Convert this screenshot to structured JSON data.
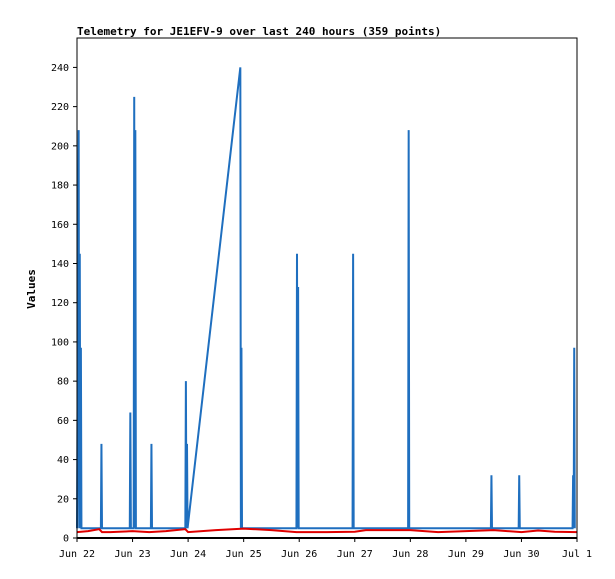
{
  "chart_data": {
    "type": "line",
    "title": "Telemetry for JE1EFV-9 over last 240 hours (359 points)",
    "xlabel": "",
    "ylabel": "Values",
    "x_tick_labels": [
      "Jun 22",
      "Jun 23",
      "Jun 24",
      "Jun 25",
      "Jun 26",
      "Jun 27",
      "Jun 28",
      "Jun 29",
      "Jun 30",
      "Jul 1"
    ],
    "x_tick_days": [
      0,
      1,
      2,
      3,
      4,
      5,
      6,
      7,
      8,
      9
    ],
    "xlim_days": [
      0,
      9
    ],
    "ylim": [
      0,
      255
    ],
    "y_ticks": [
      0,
      20,
      40,
      60,
      80,
      100,
      120,
      140,
      160,
      180,
      200,
      220,
      240
    ],
    "grid": false,
    "legend": "none",
    "series": [
      {
        "color": "#1f6fbf",
        "points": [
          [
            0.0,
            5
          ],
          [
            0.03,
            208
          ],
          [
            0.04,
            5
          ],
          [
            0.05,
            145
          ],
          [
            0.06,
            5
          ],
          [
            0.07,
            97
          ],
          [
            0.08,
            5
          ],
          [
            0.43,
            5
          ],
          [
            0.44,
            48
          ],
          [
            0.45,
            5
          ],
          [
            0.95,
            5
          ],
          [
            0.96,
            64
          ],
          [
            0.97,
            5
          ],
          [
            1.02,
            5
          ],
          [
            1.03,
            225
          ],
          [
            1.04,
            5
          ],
          [
            1.05,
            208
          ],
          [
            1.06,
            5
          ],
          [
            1.33,
            5
          ],
          [
            1.34,
            48
          ],
          [
            1.35,
            5
          ],
          [
            1.95,
            5
          ],
          [
            1.96,
            80
          ],
          [
            1.97,
            5
          ],
          [
            1.98,
            48
          ],
          [
            1.99,
            5
          ],
          [
            2.94,
            240
          ],
          [
            2.95,
            5
          ],
          [
            2.96,
            97
          ],
          [
            2.97,
            5
          ],
          [
            3.95,
            5
          ],
          [
            3.96,
            145
          ],
          [
            3.97,
            5
          ],
          [
            3.98,
            128
          ],
          [
            3.99,
            5
          ],
          [
            4.96,
            5
          ],
          [
            4.97,
            145
          ],
          [
            4.98,
            5
          ],
          [
            5.96,
            5
          ],
          [
            5.97,
            208
          ],
          [
            5.98,
            5
          ],
          [
            7.45,
            5
          ],
          [
            7.46,
            32
          ],
          [
            7.47,
            5
          ],
          [
            7.95,
            5
          ],
          [
            7.96,
            32
          ],
          [
            7.97,
            5
          ],
          [
            8.92,
            5
          ],
          [
            8.93,
            32
          ],
          [
            8.94,
            5
          ],
          [
            8.95,
            97
          ],
          [
            8.96,
            5
          ]
        ]
      },
      {
        "color": "#e00000",
        "points": [
          [
            0.0,
            3
          ],
          [
            0.2,
            3.5
          ],
          [
            0.4,
            4.5
          ],
          [
            0.45,
            3
          ],
          [
            0.6,
            3
          ],
          [
            1.0,
            3.5
          ],
          [
            1.3,
            3
          ],
          [
            1.6,
            3.5
          ],
          [
            1.95,
            4.5
          ],
          [
            2.0,
            3
          ],
          [
            2.5,
            4
          ],
          [
            3.0,
            4.8
          ],
          [
            3.5,
            4
          ],
          [
            3.95,
            3
          ],
          [
            4.5,
            3
          ],
          [
            5.0,
            3.2
          ],
          [
            5.2,
            4
          ],
          [
            6.0,
            4
          ],
          [
            6.5,
            3
          ],
          [
            7.0,
            3.5
          ],
          [
            7.5,
            4
          ],
          [
            8.0,
            3
          ],
          [
            8.3,
            3.8
          ],
          [
            8.6,
            3.2
          ],
          [
            9.0,
            3
          ]
        ]
      },
      {
        "color": "#000000",
        "points": [
          [
            0.0,
            0
          ],
          [
            9.0,
            0
          ]
        ]
      }
    ]
  }
}
